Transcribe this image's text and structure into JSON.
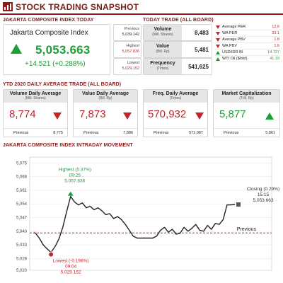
{
  "header": {
    "title": "STOCK TRADING SNAPSHOT",
    "icon": "bar-chart-icon"
  },
  "jci_panel": {
    "section_title": "JAKARTA COMPOSITE INDEX TODAY",
    "name": "Jakarta Composite Index",
    "value": "5,053.663",
    "change": "+14.521 (+0.288%)",
    "direction": "up",
    "stats": [
      {
        "label": "Previous",
        "value": "5,039.142",
        "color": "black"
      },
      {
        "label": "Highest",
        "value": "5,057.836",
        "color": "red"
      },
      {
        "label": "Lowest",
        "value": "5,029.152",
        "color": "red"
      }
    ]
  },
  "today_trade": {
    "section_title": "TODAY TRADE (ALL BOARD)",
    "rows": [
      {
        "label": "Volume",
        "unit": "(Mill. Shares)",
        "value": "8,483"
      },
      {
        "label": "Value",
        "unit": "(Bill. Rp)",
        "value": "5,481"
      },
      {
        "label": "Frequency",
        "unit": "(Times)",
        "value": "541,625"
      }
    ],
    "ratios": [
      {
        "label": "Average PER",
        "value": "12.6",
        "direction": "down"
      },
      {
        "label": "WA PER",
        "value": "33.1",
        "direction": "down"
      },
      {
        "label": "Average PBV",
        "value": "1.8",
        "direction": "down"
      },
      {
        "label": "WA PBV",
        "value": "1.6",
        "direction": "down"
      },
      {
        "label": "USD/IDR BI",
        "value": "14,737",
        "direction": "up"
      },
      {
        "label": "WTI Oil ($/bbl)",
        "value": "41.19",
        "direction": "up"
      }
    ]
  },
  "ytd": {
    "section_title": "YTD 2020 DAILY AVERAGE TRADE (ALL BOARD)",
    "cards": [
      {
        "title": "Volume Daily Average",
        "unit": "(Mill. Shares)",
        "value": "8,774",
        "direction": "down",
        "prev_label": "Previous",
        "prev_value": "8,775"
      },
      {
        "title": "Value Daily Average",
        "unit": "(Bill. Rp)",
        "value": "7,873",
        "direction": "down",
        "prev_label": "Previous",
        "prev_value": "7,886"
      },
      {
        "title": "Freq. Daily Average",
        "unit": "(Times)",
        "value": "570,932",
        "direction": "down",
        "prev_label": "Previous",
        "prev_value": "571,087"
      },
      {
        "title": "Market Capitalization",
        "unit": "(Trill. Rp)",
        "value": "5,877",
        "direction": "up",
        "prev_label": "Previous",
        "prev_value": "5,861"
      }
    ]
  },
  "chart_data": {
    "type": "line",
    "title": "JAKARTA COMPOSITE INDEX INTRADAY MOVEMENT",
    "xlabel": "",
    "ylabel": "",
    "ylim": [
      5020,
      5078
    ],
    "yticks": [
      5020,
      5026,
      5033,
      5040,
      5047,
      5054,
      5061,
      5068,
      5075
    ],
    "ytick_labels": [
      "5,020",
      "5,026",
      "5,033",
      "5,040",
      "5,047",
      "5,054",
      "5,061",
      "5,068",
      "5,075"
    ],
    "grid": true,
    "previous_value": 5039.142,
    "previous_label": "Previous",
    "series": [
      {
        "values": [
          5039.1,
          5036.5,
          5033.0,
          5031.0,
          5029.2,
          5032.0,
          5036.0,
          5042.0,
          5050.0,
          5057.8,
          5055.0,
          5053.5,
          5054.5,
          5052.0,
          5052.8,
          5051.0,
          5052.0,
          5050.5,
          5048.5,
          5049.0,
          5046.5,
          5047.5,
          5046.0,
          5043.5,
          5040.5,
          5037.5,
          5036.5,
          5036.5,
          5036.5,
          5036.5,
          5036.5,
          5037.5,
          5040.5,
          5042.0,
          5039.5,
          5041.0,
          5038.5,
          5039.0,
          5042.0,
          5040.0,
          5041.5,
          5043.5,
          5040.5,
          5040.0,
          5043.0,
          5041.0,
          5044.0,
          5043.5,
          5046.0,
          5053.5,
          5053.5,
          5053.7
        ]
      }
    ],
    "annotations": [
      {
        "name": "highest",
        "lines": [
          "Highest (0.37%)",
          "09:25",
          "5,057.836"
        ],
        "value": 5057.836,
        "color": "#1e9e36"
      },
      {
        "name": "lowest",
        "lines": [
          "Lowest (-0.198%)",
          "09:04",
          "5,029.152"
        ],
        "value": 5029.152,
        "color": "#c0262a"
      },
      {
        "name": "closing",
        "lines": [
          "Closing (0.29%)",
          "15:15",
          "5,053.663"
        ],
        "value": 5053.663,
        "color": "#333333"
      }
    ]
  },
  "colors": {
    "accent": "#8c1c1c",
    "up": "#1e9e36",
    "down": "#c0262a",
    "label_bg": "#e4e4e4"
  }
}
